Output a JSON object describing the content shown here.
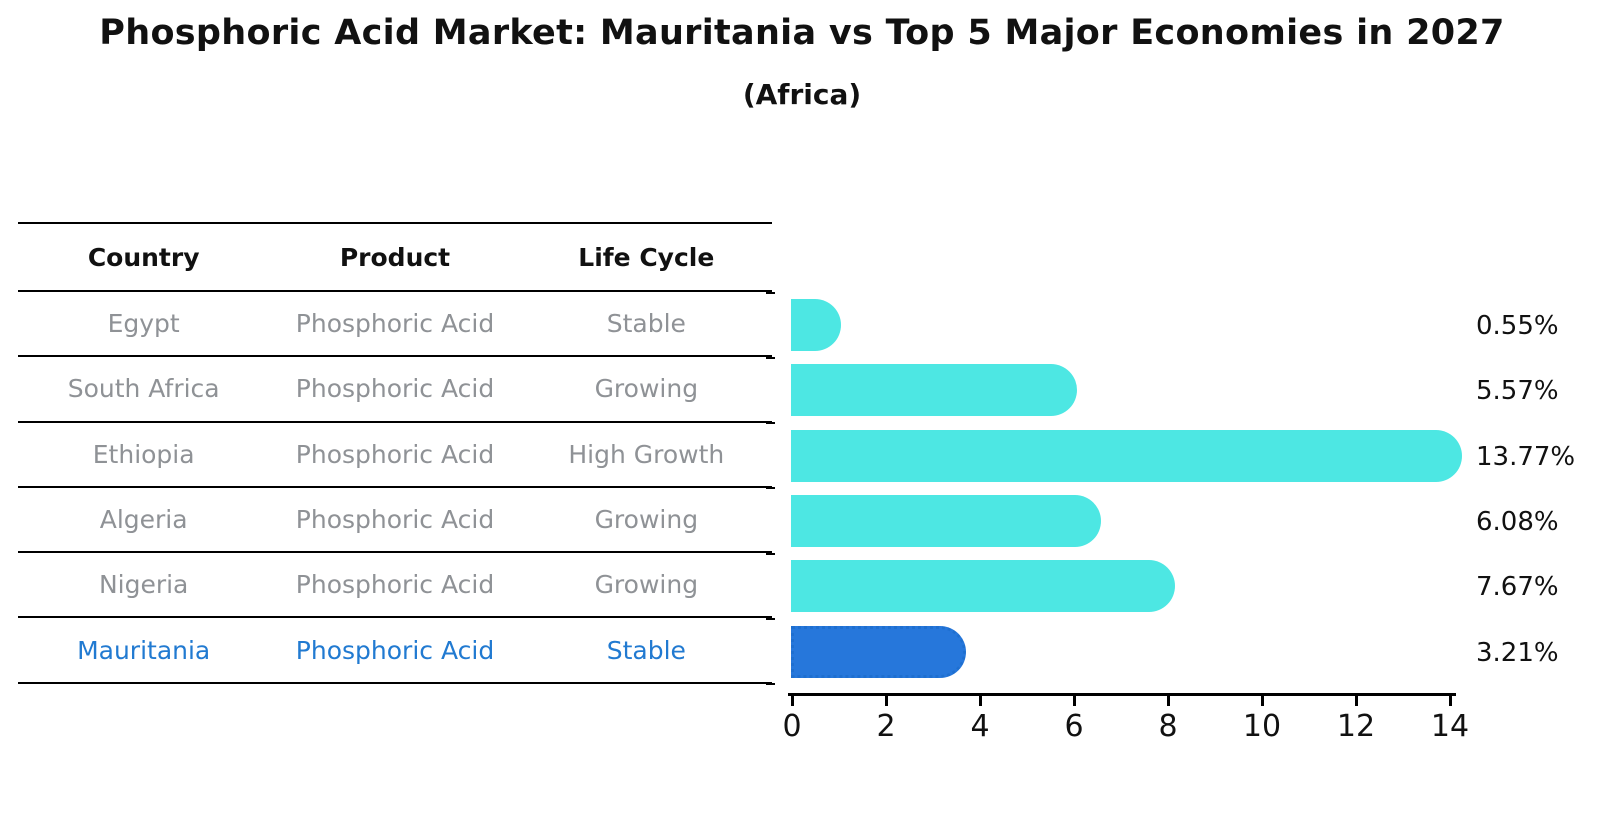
{
  "title": "Phosphoric Acid Market: Mauritania vs Top 5 Major Economies in 2027",
  "subtitle": "(Africa)",
  "table": {
    "headers": [
      "Country",
      "Product",
      "Life Cycle"
    ],
    "rows": [
      {
        "country": "Egypt",
        "product": "Phosphoric Acid",
        "life_cycle": "Stable",
        "highlight": false
      },
      {
        "country": "South Africa",
        "product": "Phosphoric Acid",
        "life_cycle": "Growing",
        "highlight": false
      },
      {
        "country": "Ethiopia",
        "product": "Phosphoric Acid",
        "life_cycle": "High Growth",
        "highlight": false
      },
      {
        "country": "Algeria",
        "product": "Phosphoric Acid",
        "life_cycle": "Growing",
        "highlight": false
      },
      {
        "country": "Nigeria",
        "product": "Phosphoric Acid",
        "life_cycle": "Growing",
        "highlight": false
      },
      {
        "country": "Mauritania",
        "product": "Phosphoric Acid",
        "life_cycle": "Stable",
        "highlight": true
      }
    ]
  },
  "chart_data": {
    "type": "bar",
    "orientation": "horizontal",
    "title": "Phosphoric Acid Market: Mauritania vs Top 5 Major Economies in 2027",
    "subtitle": "(Africa)",
    "categories": [
      "Egypt",
      "South Africa",
      "Ethiopia",
      "Algeria",
      "Nigeria",
      "Mauritania"
    ],
    "values": [
      0.55,
      5.57,
      13.77,
      6.08,
      7.67,
      3.21
    ],
    "value_labels": [
      "0.55%",
      "5.57%",
      "13.77%",
      "6.08%",
      "7.67%",
      "3.21%"
    ],
    "highlight_category": "Mauritania",
    "x_ticks": [
      0,
      2,
      4,
      6,
      8,
      10,
      12,
      14
    ],
    "xlim": [
      0,
      14.2
    ],
    "xlabel": "",
    "ylabel": "",
    "grid": false,
    "legend": "none"
  },
  "colors": {
    "bar_default": "#4DE7E3",
    "bar_highlight": "#2677DB",
    "bar_highlight_border": "#1E6FD0",
    "table_text": "#8F9296",
    "highlight_text": "#217AD1",
    "header_text": "#111111",
    "axis": "#000000"
  }
}
